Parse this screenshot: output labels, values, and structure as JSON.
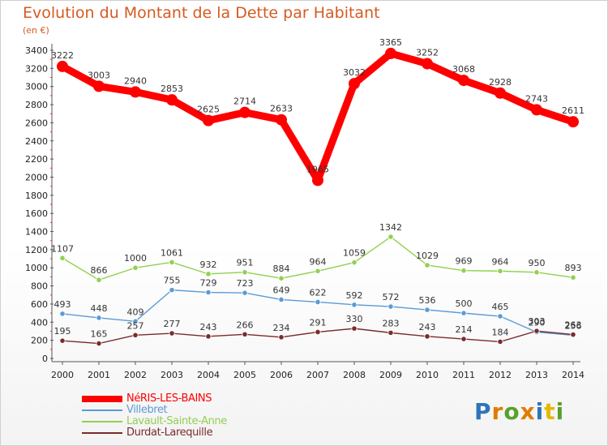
{
  "title": "Evolution du Montant de la Dette par Habitant",
  "subtitle": "(en €)",
  "logo_text": "Proxiti",
  "chart_data": {
    "type": "line",
    "title": "Evolution du Montant de la Dette par Habitant",
    "subtitle": "(en €)",
    "x": [
      "2000",
      "2001",
      "2002",
      "2003",
      "2004",
      "2005",
      "2006",
      "2007",
      "2008",
      "2009",
      "2010",
      "2011",
      "2012",
      "2013",
      "2014"
    ],
    "ylim": [
      0,
      3400
    ],
    "yticks": [
      0,
      200,
      400,
      600,
      800,
      1000,
      1200,
      1400,
      1600,
      1800,
      2000,
      2200,
      2400,
      2600,
      2800,
      3000,
      3200,
      3400
    ],
    "grid": false,
    "legend_position": "bottom-left",
    "series": [
      {
        "name": "NéRIS-LES-BAINS",
        "color": "#ff0000",
        "values": [
          3222,
          3003,
          2940,
          2853,
          2625,
          2714,
          2633,
          1965,
          3032,
          3365,
          3252,
          3068,
          2928,
          2743,
          2611
        ]
      },
      {
        "name": "Villebret",
        "color": "#5b9bd5",
        "values": [
          493,
          448,
          409,
          755,
          729,
          723,
          649,
          622,
          592,
          572,
          536,
          500,
          465,
          290,
          256
        ]
      },
      {
        "name": "Lavault-Sainte-Anne",
        "color": "#92d050",
        "values": [
          1107,
          866,
          1000,
          1061,
          932,
          951,
          884,
          964,
          1059,
          1342,
          1029,
          969,
          964,
          950,
          893
        ]
      },
      {
        "name": "Durdat-Larequille",
        "color": "#7b2b2b",
        "values": [
          195,
          165,
          257,
          277,
          243,
          266,
          234,
          291,
          330,
          283,
          243,
          214,
          184,
          303,
          263
        ]
      }
    ]
  }
}
